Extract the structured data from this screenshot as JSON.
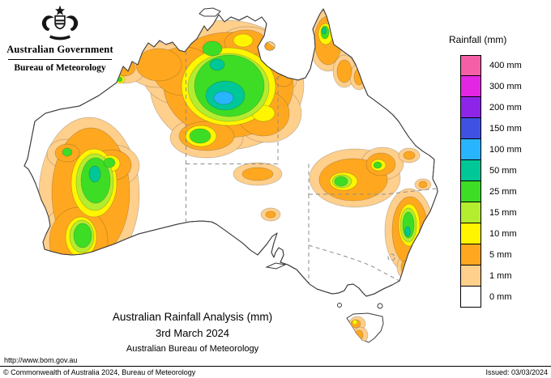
{
  "header": {
    "government": "Australian Government",
    "bureau": "Bureau of Meteorology",
    "coat_of_arms_icon": "australian-coat-of-arms"
  },
  "legend": {
    "title": "Rainfall (mm)",
    "entries": [
      {
        "level": "400",
        "label": "400 mm",
        "color": "#f55fa8"
      },
      {
        "level": "300",
        "label": "300 mm",
        "color": "#e326e3"
      },
      {
        "level": "200",
        "label": "200 mm",
        "color": "#8e24e8"
      },
      {
        "level": "150",
        "label": "150 mm",
        "color": "#3f51e3"
      },
      {
        "level": "100",
        "label": "100 mm",
        "color": "#29b4ff"
      },
      {
        "level": "50",
        "label": "50 mm",
        "color": "#00c797"
      },
      {
        "level": "25",
        "label": "25 mm",
        "color": "#3ddd25"
      },
      {
        "level": "15",
        "label": "15 mm",
        "color": "#b4ed2f"
      },
      {
        "level": "10",
        "label": "10 mm",
        "color": "#fff500"
      },
      {
        "level": "5",
        "label": "5 mm",
        "color": "#ffa81f"
      },
      {
        "level": "1",
        "label": "1 mm",
        "color": "#ffcf8c"
      },
      {
        "level": "0",
        "label": "0 mm",
        "color": "#ffffff"
      }
    ]
  },
  "caption": {
    "title": "Australian Rainfall Analysis (mm)",
    "date": "3rd March 2024",
    "org": "Australian Bureau of Meteorology"
  },
  "footer": {
    "url": "http://www.bom.gov.au",
    "copyright": "© Commonwealth of Australia 2024, Bureau of Meteorology",
    "issued": "Issued: 03/03/2024"
  },
  "map": {
    "land_color": "#ffffff",
    "coast_color": "#3a3a3a",
    "state_border_color": "#8e8e8e",
    "rainfall_regions": [
      {
        "area": "north-west Northern Territory / Top End",
        "peak_band": "100 mm"
      },
      {
        "area": "Kimberley (WA)",
        "peak_band": "10 mm"
      },
      {
        "area": "Cape York Peninsula (QLD)",
        "peak_band": "50 mm"
      },
      {
        "area": "west coast WA (Pilbara-Gascoyne)",
        "peak_band": "50 mm"
      },
      {
        "area": "central Australia",
        "peak_band": "5 mm"
      },
      {
        "area": "inland southern QLD / northern NSW",
        "peak_band": "25 mm"
      },
      {
        "area": "NSW east coast",
        "peak_band": "50 mm"
      },
      {
        "area": "western Tasmania",
        "peak_band": "10 mm"
      }
    ]
  }
}
